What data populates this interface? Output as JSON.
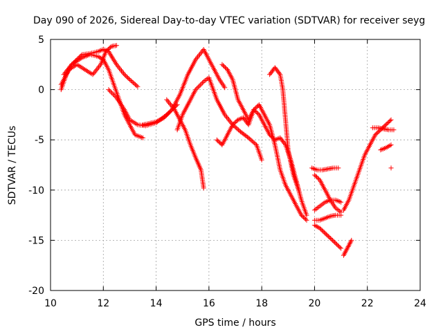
{
  "chart_data": {
    "type": "scatter",
    "title": "Day 090 of 2026, Sidereal Day-to-day VTEC variation (SDTVAR) for receiver seyg",
    "xlabel": "GPS time / hours",
    "ylabel": "SDTVAR / TECUs",
    "xlim": [
      10,
      24
    ],
    "ylim": [
      -20,
      5
    ],
    "xticks": [
      "10",
      "12",
      "14",
      "16",
      "18",
      "20",
      "22",
      "24"
    ],
    "yticks": [
      "5",
      "0",
      "-5",
      "-10",
      "-15",
      "-20"
    ],
    "grid": true,
    "marker": "+",
    "marker_color": "#ff0000",
    "series": [
      {
        "name": "track-1",
        "x": [
          10.4,
          10.6,
          10.8,
          11.0,
          11.2,
          11.5,
          11.8,
          12.0,
          12.2,
          12.5,
          12.8,
          13.0,
          13.3
        ],
        "y": [
          0.0,
          1.5,
          2.5,
          3.0,
          3.5,
          3.6,
          3.8,
          4.0,
          3.8,
          2.5,
          1.5,
          1.0,
          0.3
        ]
      },
      {
        "name": "track-2",
        "x": [
          10.5,
          10.8,
          11.2,
          11.5,
          11.8,
          12.0,
          12.2,
          12.4,
          12.6,
          12.8,
          13.0,
          13.2,
          13.5
        ],
        "y": [
          1.5,
          2.5,
          3.2,
          3.5,
          3.3,
          3.0,
          2.0,
          0.5,
          -1.0,
          -2.5,
          -3.5,
          -4.5,
          -4.8
        ]
      },
      {
        "name": "track-3",
        "x": [
          10.4,
          10.7,
          11.0,
          11.3,
          11.6,
          11.9,
          12.1,
          12.3,
          12.5
        ],
        "y": [
          0.5,
          2.0,
          2.5,
          2.0,
          1.5,
          2.5,
          3.8,
          4.3,
          4.4
        ]
      },
      {
        "name": "track-4",
        "x": [
          12.2,
          12.5,
          12.8,
          13.0,
          13.3,
          13.6,
          14.0,
          14.4,
          14.8
        ],
        "y": [
          0.0,
          -0.8,
          -2.0,
          -3.0,
          -3.5,
          -3.6,
          -3.3,
          -2.5,
          -1.5
        ]
      },
      {
        "name": "track-5",
        "x": [
          13.5,
          14.0,
          14.3,
          14.6,
          14.9,
          15.2,
          15.5,
          15.8,
          16.0,
          16.2,
          16.4,
          16.6
        ],
        "y": [
          -3.5,
          -3.2,
          -2.8,
          -2.0,
          -0.5,
          1.5,
          3.0,
          4.0,
          3.0,
          2.0,
          1.0,
          0.2
        ]
      },
      {
        "name": "track-6",
        "x": [
          14.4,
          14.7,
          14.9,
          15.1,
          15.3,
          15.5,
          15.7,
          15.8
        ],
        "y": [
          -1.0,
          -2.0,
          -3.0,
          -4.0,
          -5.5,
          -6.8,
          -8.0,
          -9.8
        ]
      },
      {
        "name": "track-7",
        "x": [
          14.8,
          15.0,
          15.3,
          15.5,
          15.8,
          16.0,
          16.3,
          16.6,
          16.9,
          17.2,
          17.5,
          17.8,
          18.0
        ],
        "y": [
          -4.0,
          -2.5,
          -1.0,
          0.0,
          0.8,
          1.2,
          -1.0,
          -2.5,
          -3.5,
          -4.2,
          -4.8,
          -5.5,
          -7.0
        ]
      },
      {
        "name": "track-8",
        "x": [
          16.3,
          16.5,
          16.7,
          16.9,
          17.1,
          17.3,
          17.5,
          17.7,
          17.9,
          18.1,
          18.3,
          18.5,
          18.7,
          18.9,
          19.1,
          19.3,
          19.5,
          19.7
        ],
        "y": [
          -5.0,
          -5.5,
          -4.5,
          -3.5,
          -3.0,
          -2.8,
          -3.5,
          -2.0,
          -2.5,
          -3.5,
          -4.5,
          -5.0,
          -4.8,
          -5.5,
          -7.0,
          -9.0,
          -11.0,
          -12.5
        ]
      },
      {
        "name": "track-9",
        "x": [
          16.5,
          16.7,
          16.9,
          17.1,
          17.3,
          17.5,
          17.7,
          17.9,
          18.1,
          18.3,
          18.5,
          18.7,
          18.9,
          19.1,
          19.3,
          19.5,
          19.7
        ],
        "y": [
          2.5,
          2.0,
          1.0,
          -1.0,
          -2.0,
          -3.0,
          -2.0,
          -1.5,
          -2.5,
          -3.5,
          -5.5,
          -8.0,
          -9.5,
          -10.5,
          -11.5,
          -12.5,
          -13.0
        ]
      },
      {
        "name": "track-10",
        "x": [
          18.3,
          18.5,
          18.7,
          18.8,
          18.9,
          19.0,
          19.2,
          19.4
        ],
        "y": [
          1.5,
          2.2,
          1.5,
          0.0,
          -3.0,
          -6.0,
          -8.5,
          -10.0
        ]
      },
      {
        "name": "track-11",
        "x": [
          19.9,
          20.1,
          20.3,
          20.5,
          20.7,
          20.9
        ],
        "y": [
          -7.8,
          -8.0,
          -8.0,
          -7.9,
          -7.8,
          -7.8
        ]
      },
      {
        "name": "track-12",
        "x": [
          20.0,
          20.2,
          20.4,
          20.6,
          20.8,
          21.0
        ],
        "y": [
          -8.5,
          -9.0,
          -10.0,
          -11.0,
          -11.8,
          -12.2
        ]
      },
      {
        "name": "track-13",
        "x": [
          20.0,
          20.2,
          20.4,
          20.6,
          20.8,
          21.0
        ],
        "y": [
          -12.0,
          -11.6,
          -11.2,
          -11.0,
          -11.0,
          -11.2
        ]
      },
      {
        "name": "track-14",
        "x": [
          20.0,
          20.2,
          20.4,
          20.6,
          20.8,
          21.0
        ],
        "y": [
          -13.0,
          -13.0,
          -12.8,
          -12.6,
          -12.5,
          -12.5
        ]
      },
      {
        "name": "track-15",
        "x": [
          20.0,
          20.2,
          20.4,
          20.6,
          20.8,
          21.0
        ],
        "y": [
          -13.5,
          -13.8,
          -14.3,
          -14.8,
          -15.3,
          -15.8
        ]
      },
      {
        "name": "track-16",
        "x": [
          21.1,
          21.2,
          21.3,
          21.4
        ],
        "y": [
          -16.5,
          -16.0,
          -15.5,
          -15.0
        ]
      },
      {
        "name": "track-17",
        "x": [
          21.1,
          21.3,
          21.5,
          21.7,
          21.9,
          22.1,
          22.3,
          22.5,
          22.7,
          22.9
        ],
        "y": [
          -12.0,
          -11.0,
          -9.5,
          -8.0,
          -6.5,
          -5.5,
          -4.5,
          -4.0,
          -3.5,
          -3.0
        ]
      },
      {
        "name": "track-18",
        "x": [
          22.2,
          22.4,
          22.6,
          22.8,
          23.0
        ],
        "y": [
          -3.8,
          -3.8,
          -3.9,
          -4.0,
          -4.0
        ]
      },
      {
        "name": "track-19",
        "x": [
          22.5,
          22.7,
          22.9
        ],
        "y": [
          -6.0,
          -5.8,
          -5.5
        ]
      },
      {
        "name": "track-20",
        "x": [
          22.9
        ],
        "y": [
          -7.8
        ]
      }
    ]
  }
}
